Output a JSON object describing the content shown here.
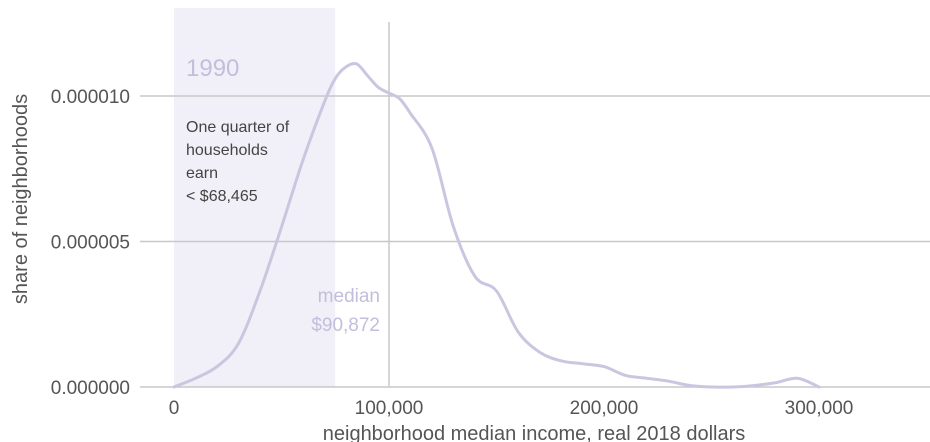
{
  "chart_data": {
    "type": "area",
    "title": "",
    "xlabel": "neighborhood median income, real 2018 dollars",
    "ylabel": "share of neighborhoods",
    "xlim": [
      0,
      330000
    ],
    "ylim": [
      0,
      1.26e-05
    ],
    "x_ticks": [
      {
        "value": 0,
        "label": "0"
      },
      {
        "value": 100000,
        "label": "100,000"
      },
      {
        "value": 200000,
        "label": "200,000"
      },
      {
        "value": 300000,
        "label": "300,000"
      }
    ],
    "y_ticks": [
      {
        "value": 0,
        "label": "0.000000"
      },
      {
        "value": 5e-06,
        "label": "0.000005"
      },
      {
        "value": 1e-05,
        "label": "0.000010"
      }
    ],
    "grid": "horizontal",
    "series": [
      {
        "x": [
          0,
          10000,
          20000,
          30000,
          40000,
          50000,
          60000,
          70000,
          75000,
          80000,
          85000,
          90000,
          95000,
          100000,
          105000,
          110000,
          120000,
          130000,
          140000,
          150000,
          160000,
          170000,
          180000,
          190000,
          200000,
          210000,
          220000,
          230000,
          240000,
          250000,
          260000,
          270000,
          280000,
          290000,
          300000
        ],
        "y": [
          0.0,
          3e-07,
          7e-07,
          1.5e-06,
          3.3e-06,
          5.5e-06,
          7.8e-06,
          9.8e-06,
          1.06e-05,
          1.1e-05,
          1.11e-05,
          1.07e-05,
          1.03e-05,
          1.01e-05,
          9.9e-06,
          9.4e-06,
          8.2e-06,
          5.5e-06,
          3.8e-06,
          3.3e-06,
          1.9e-06,
          1.2e-06,
          9e-07,
          8e-07,
          7e-07,
          4e-07,
          3e-07,
          2e-07,
          5e-08,
          0.0,
          0.0,
          5e-08,
          1.5e-07,
          3e-07,
          0.0
        ]
      }
    ],
    "annotations": {
      "year": "1990",
      "shaded_range": [
        0,
        75000
      ],
      "note_lines": [
        "One quarter of",
        "households",
        "earn",
        "< $68,465"
      ],
      "median_value": 100000,
      "median_lines": [
        "median",
        "$90,872"
      ]
    },
    "colors": {
      "curve": "#cbc6e0",
      "shade": "#f1f0f8",
      "grid": "#c8c8c8",
      "year_text": "#c3bedb",
      "median_text": "#c3bedb"
    }
  }
}
